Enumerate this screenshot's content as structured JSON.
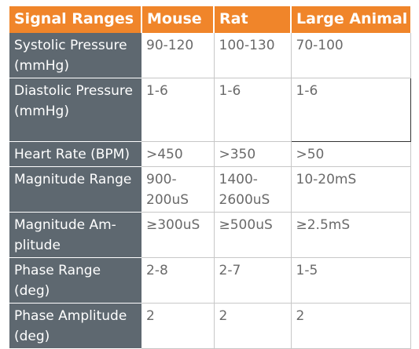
{
  "headers": [
    "Signal Ranges",
    "Mouse",
    "Rat",
    "Large Animal"
  ],
  "rows": [
    {
      "label": [
        "Systolic Pressure",
        "(mmHg)"
      ],
      "mouse": "90-120",
      "rat": "100-130",
      "large": "70-100"
    },
    {
      "label": [
        "Diastolic Pressure",
        "(mmHg)"
      ],
      "mouse": "1-6",
      "rat": "1-6",
      "large": "1-6"
    },
    {
      "label": [
        "Heart Rate (BPM)"
      ],
      "mouse": ">450",
      "rat": ">350",
      "large": ">50"
    },
    {
      "label": [
        "Magnitude Range"
      ],
      "mouse": [
        "900-",
        "200uS"
      ],
      "rat": [
        "1400-",
        "2600uS"
      ],
      "large": "10-20mS"
    },
    {
      "label": [
        "Magnitude Am-",
        "plitude"
      ],
      "mouse": "≥300uS",
      "rat": "≥500uS",
      "large": "≥2.5mS"
    },
    {
      "label": [
        "Phase Range",
        "(deg)"
      ],
      "mouse": "2-8",
      "rat": "2-7",
      "large": "1-5"
    },
    {
      "label": [
        "Phase Amplitude",
        "(deg)"
      ],
      "mouse": "2",
      "rat": "2",
      "large": "2"
    }
  ]
}
